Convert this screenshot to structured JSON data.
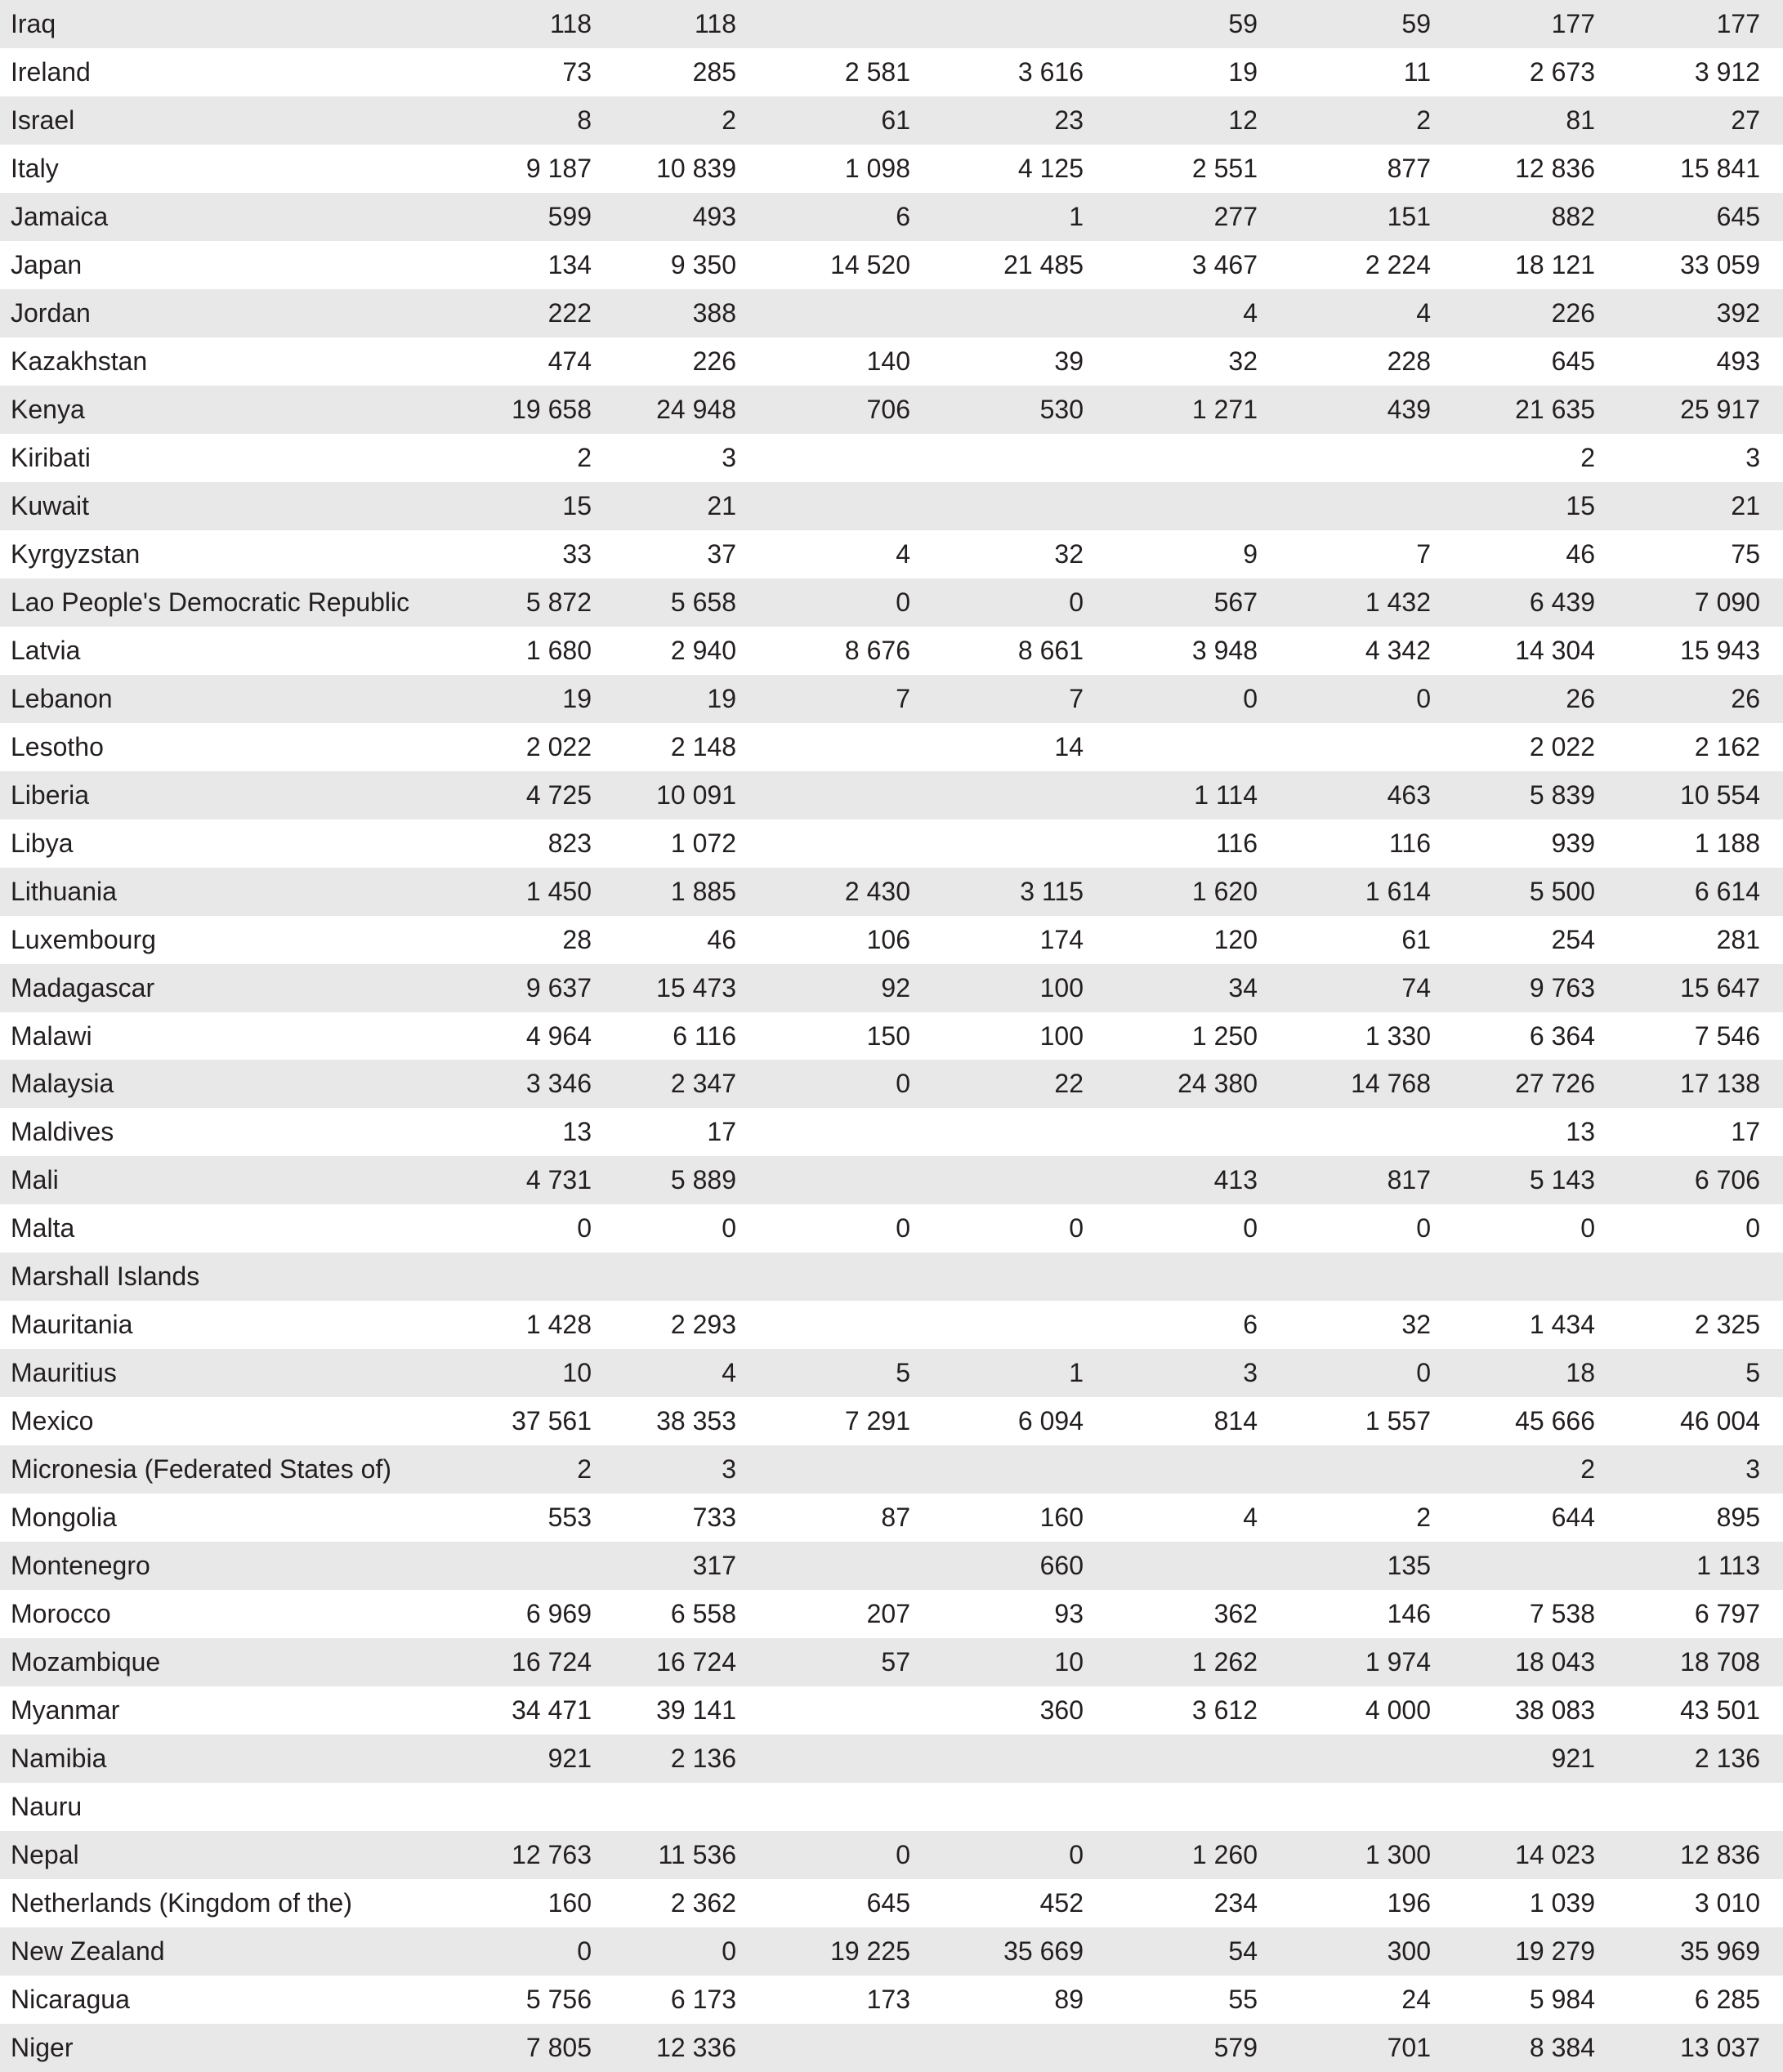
{
  "table": {
    "rows": [
      {
        "name": "Iraq",
        "cells": [
          "118",
          "118",
          null,
          null,
          "59",
          "59",
          "177",
          "177"
        ]
      },
      {
        "name": "Ireland",
        "cells": [
          "73",
          "285",
          "2 581",
          "3 616",
          "19",
          "11",
          "2 673",
          "3 912"
        ]
      },
      {
        "name": "Israel",
        "cells": [
          "8",
          "2",
          "61",
          "23",
          "12",
          "2",
          "81",
          "27"
        ]
      },
      {
        "name": "Italy",
        "cells": [
          "9 187",
          "10 839",
          "1 098",
          "4 125",
          "2 551",
          "877",
          "12 836",
          "15 841"
        ]
      },
      {
        "name": "Jamaica",
        "cells": [
          "599",
          "493",
          "6",
          "1",
          "277",
          "151",
          "882",
          "645"
        ]
      },
      {
        "name": "Japan",
        "cells": [
          "134",
          "9 350",
          "14 520",
          "21 485",
          "3 467",
          "2 224",
          "18 121",
          "33 059"
        ]
      },
      {
        "name": "Jordan",
        "cells": [
          "222",
          "388",
          null,
          null,
          "4",
          "4",
          "226",
          "392"
        ]
      },
      {
        "name": "Kazakhstan",
        "cells": [
          "474",
          "226",
          "140",
          "39",
          "32",
          "228",
          "645",
          "493"
        ]
      },
      {
        "name": "Kenya",
        "cells": [
          "19 658",
          "24 948",
          "706",
          "530",
          "1 271",
          "439",
          "21 635",
          "25 917"
        ]
      },
      {
        "name": "Kiribati",
        "cells": [
          "2",
          "3",
          null,
          null,
          null,
          null,
          "2",
          "3"
        ]
      },
      {
        "name": "Kuwait",
        "cells": [
          "15",
          "21",
          null,
          null,
          null,
          null,
          "15",
          "21"
        ]
      },
      {
        "name": "Kyrgyzstan",
        "cells": [
          "33",
          "37",
          "4",
          "32",
          "9",
          "7",
          "46",
          "75"
        ]
      },
      {
        "name": "Lao People's Democratic Republic",
        "cells": [
          "5 872",
          "5 658",
          "0",
          "0",
          "567",
          "1 432",
          "6 439",
          "7 090"
        ]
      },
      {
        "name": "Latvia",
        "cells": [
          "1 680",
          "2 940",
          "8 676",
          "8 661",
          "3 948",
          "4 342",
          "14 304",
          "15 943"
        ]
      },
      {
        "name": "Lebanon",
        "cells": [
          "19",
          "19",
          "7",
          "7",
          "0",
          "0",
          "26",
          "26"
        ]
      },
      {
        "name": "Lesotho",
        "cells": [
          "2 022",
          "2 148",
          null,
          "14",
          null,
          null,
          "2 022",
          "2 162"
        ]
      },
      {
        "name": "Liberia",
        "cells": [
          "4 725",
          "10 091",
          null,
          null,
          "1 114",
          "463",
          "5 839",
          "10 554"
        ]
      },
      {
        "name": "Libya",
        "cells": [
          "823",
          "1 072",
          null,
          null,
          "116",
          "116",
          "939",
          "1 188"
        ]
      },
      {
        "name": "Lithuania",
        "cells": [
          "1 450",
          "1 885",
          "2 430",
          "3 115",
          "1 620",
          "1 614",
          "5 500",
          "6 614"
        ]
      },
      {
        "name": "Luxembourg",
        "cells": [
          "28",
          "46",
          "106",
          "174",
          "120",
          "61",
          "254",
          "281"
        ]
      },
      {
        "name": "Madagascar",
        "cells": [
          "9 637",
          "15 473",
          "92",
          "100",
          "34",
          "74",
          "9 763",
          "15 647"
        ]
      },
      {
        "name": "Malawi",
        "cells": [
          "4 964",
          "6 116",
          "150",
          "100",
          "1 250",
          "1 330",
          "6 364",
          "7 546"
        ]
      },
      {
        "name": "Malaysia",
        "cells": [
          "3 346",
          "2 347",
          "0",
          "22",
          "24 380",
          "14 768",
          "27 726",
          "17 138"
        ]
      },
      {
        "name": "Maldives",
        "cells": [
          "13",
          "17",
          null,
          null,
          null,
          null,
          "13",
          "17"
        ]
      },
      {
        "name": "Mali",
        "cells": [
          "4 731",
          "5 889",
          null,
          null,
          "413",
          "817",
          "5 143",
          "6 706"
        ]
      },
      {
        "name": "Malta",
        "cells": [
          "0",
          "0",
          "0",
          "0",
          "0",
          "0",
          "0",
          "0"
        ]
      },
      {
        "name": "Marshall Islands",
        "cells": [
          null,
          null,
          null,
          null,
          null,
          null,
          null,
          null
        ]
      },
      {
        "name": "Mauritania",
        "cells": [
          "1 428",
          "2 293",
          null,
          null,
          "6",
          "32",
          "1 434",
          "2 325"
        ]
      },
      {
        "name": "Mauritius",
        "cells": [
          "10",
          "4",
          "5",
          "1",
          "3",
          "0",
          "18",
          "5"
        ]
      },
      {
        "name": "Mexico",
        "cells": [
          "37 561",
          "38 353",
          "7 291",
          "6 094",
          "814",
          "1 557",
          "45 666",
          "46 004"
        ]
      },
      {
        "name": "Micronesia (Federated States of)",
        "cells": [
          "2",
          "3",
          null,
          null,
          null,
          null,
          "2",
          "3"
        ]
      },
      {
        "name": "Mongolia",
        "cells": [
          "553",
          "733",
          "87",
          "160",
          "4",
          "2",
          "644",
          "895"
        ]
      },
      {
        "name": "Montenegro",
        "cells": [
          null,
          "317",
          null,
          "660",
          null,
          "135",
          null,
          "1 113"
        ]
      },
      {
        "name": "Morocco",
        "cells": [
          "6 969",
          "6 558",
          "207",
          "93",
          "362",
          "146",
          "7 538",
          "6 797"
        ]
      },
      {
        "name": "Mozambique",
        "cells": [
          "16 724",
          "16 724",
          "57",
          "10",
          "1 262",
          "1 974",
          "18 043",
          "18 708"
        ]
      },
      {
        "name": "Myanmar",
        "cells": [
          "34 471",
          "39 141",
          null,
          "360",
          "3 612",
          "4 000",
          "38 083",
          "43 501"
        ]
      },
      {
        "name": "Namibia",
        "cells": [
          "921",
          "2 136",
          null,
          null,
          null,
          null,
          "921",
          "2 136"
        ]
      },
      {
        "name": "Nauru",
        "cells": [
          null,
          null,
          null,
          null,
          null,
          null,
          null,
          null
        ]
      },
      {
        "name": "Nepal",
        "cells": [
          "12 763",
          "11 536",
          "0",
          "0",
          "1 260",
          "1 300",
          "14 023",
          "12 836"
        ]
      },
      {
        "name": "Netherlands (Kingdom of the)",
        "cells": [
          "160",
          "2 362",
          "645",
          "452",
          "234",
          "196",
          "1 039",
          "3 010"
        ]
      },
      {
        "name": "New Zealand",
        "cells": [
          "0",
          "0",
          "19 225",
          "35 669",
          "54",
          "300",
          "19 279",
          "35 969"
        ]
      },
      {
        "name": "Nicaragua",
        "cells": [
          "5 756",
          "6 173",
          "173",
          "89",
          "55",
          "24",
          "5 984",
          "6 285"
        ]
      },
      {
        "name": "Niger",
        "cells": [
          "7 805",
          "12 336",
          null,
          null,
          "579",
          "701",
          "8 384",
          "13 037"
        ]
      }
    ]
  }
}
